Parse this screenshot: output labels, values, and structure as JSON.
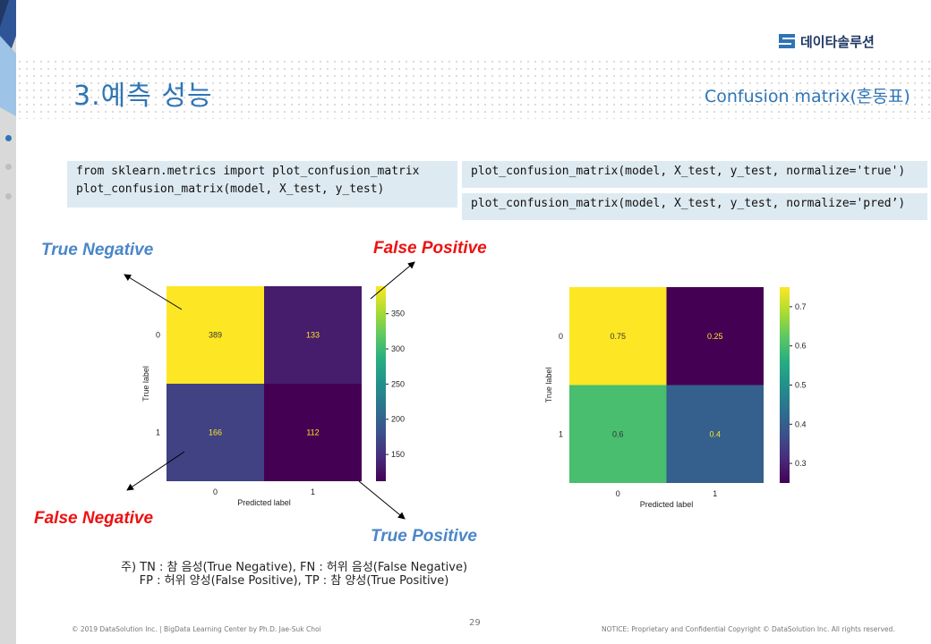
{
  "logo": {
    "text": "데이타솔루션"
  },
  "page": {
    "title": "3.예측 성능",
    "subtitle": "Confusion  matrix(혼동표)"
  },
  "code": {
    "block1_line1": "from sklearn.metrics import plot_confusion_matrix",
    "block1_line2": "plot_confusion_matrix(model, X_test, y_test)",
    "block2": "plot_confusion_matrix(model, X_test, y_test, normalize='true')",
    "block3": "plot_confusion_matrix(model, X_test, y_test, normalize='pred’)"
  },
  "annotations": {
    "true_negative": "True Negative",
    "false_positive": "False Positive",
    "false_negative": "False Negative",
    "true_positive": "True Positive"
  },
  "colors": {
    "accent_blue": "#4a86c8",
    "accent_red": "#ee1111",
    "title_blue": "#2e75b6"
  },
  "chart_data": [
    {
      "type": "heatmap",
      "xlabel": "Predicted label",
      "ylabel": "True label",
      "x_categories": [
        "0",
        "1"
      ],
      "y_categories": [
        "0",
        "1"
      ],
      "values": [
        [
          389,
          133
        ],
        [
          166,
          112
        ]
      ],
      "cell_labels": [
        [
          "389",
          "133"
        ],
        [
          "166",
          "112"
        ]
      ],
      "colormap": "viridis",
      "colorbar_range": [
        112,
        389
      ],
      "colorbar_ticks": [
        350,
        300,
        250,
        200,
        150
      ],
      "colorbar_tick_labels": [
        "350",
        "300",
        "250",
        "200",
        "150"
      ]
    },
    {
      "type": "heatmap",
      "xlabel": "Predicted label",
      "ylabel": "True label",
      "x_categories": [
        "0",
        "1"
      ],
      "y_categories": [
        "0",
        "1"
      ],
      "values": [
        [
          0.75,
          0.25
        ],
        [
          0.6,
          0.4
        ]
      ],
      "cell_labels": [
        [
          "0.75",
          "0.25"
        ],
        [
          "0.6",
          "0.4"
        ]
      ],
      "colormap": "viridis",
      "colorbar_range": [
        0.25,
        0.75
      ],
      "colorbar_ticks": [
        0.7,
        0.6,
        0.5,
        0.4,
        0.3
      ],
      "colorbar_tick_labels": [
        "0.7",
        "0.6",
        "0.5",
        "0.4",
        "0.3"
      ]
    }
  ],
  "note": {
    "line1": "주) TN : 참 음성(True Negative), FN : 허위 음성(False Negative)",
    "line2": "     FP : 허위 양성(False Positive), TP : 참 양성(True Positive)"
  },
  "footer": {
    "left": "© 2019 DataSolution Inc. | BigData Learning Center by Ph.D. Jae-Suk Choi",
    "page_number": "29",
    "right": "NOTICE: Proprietary and Confidential Copyright © DataSolution Inc. All rights reserved."
  }
}
